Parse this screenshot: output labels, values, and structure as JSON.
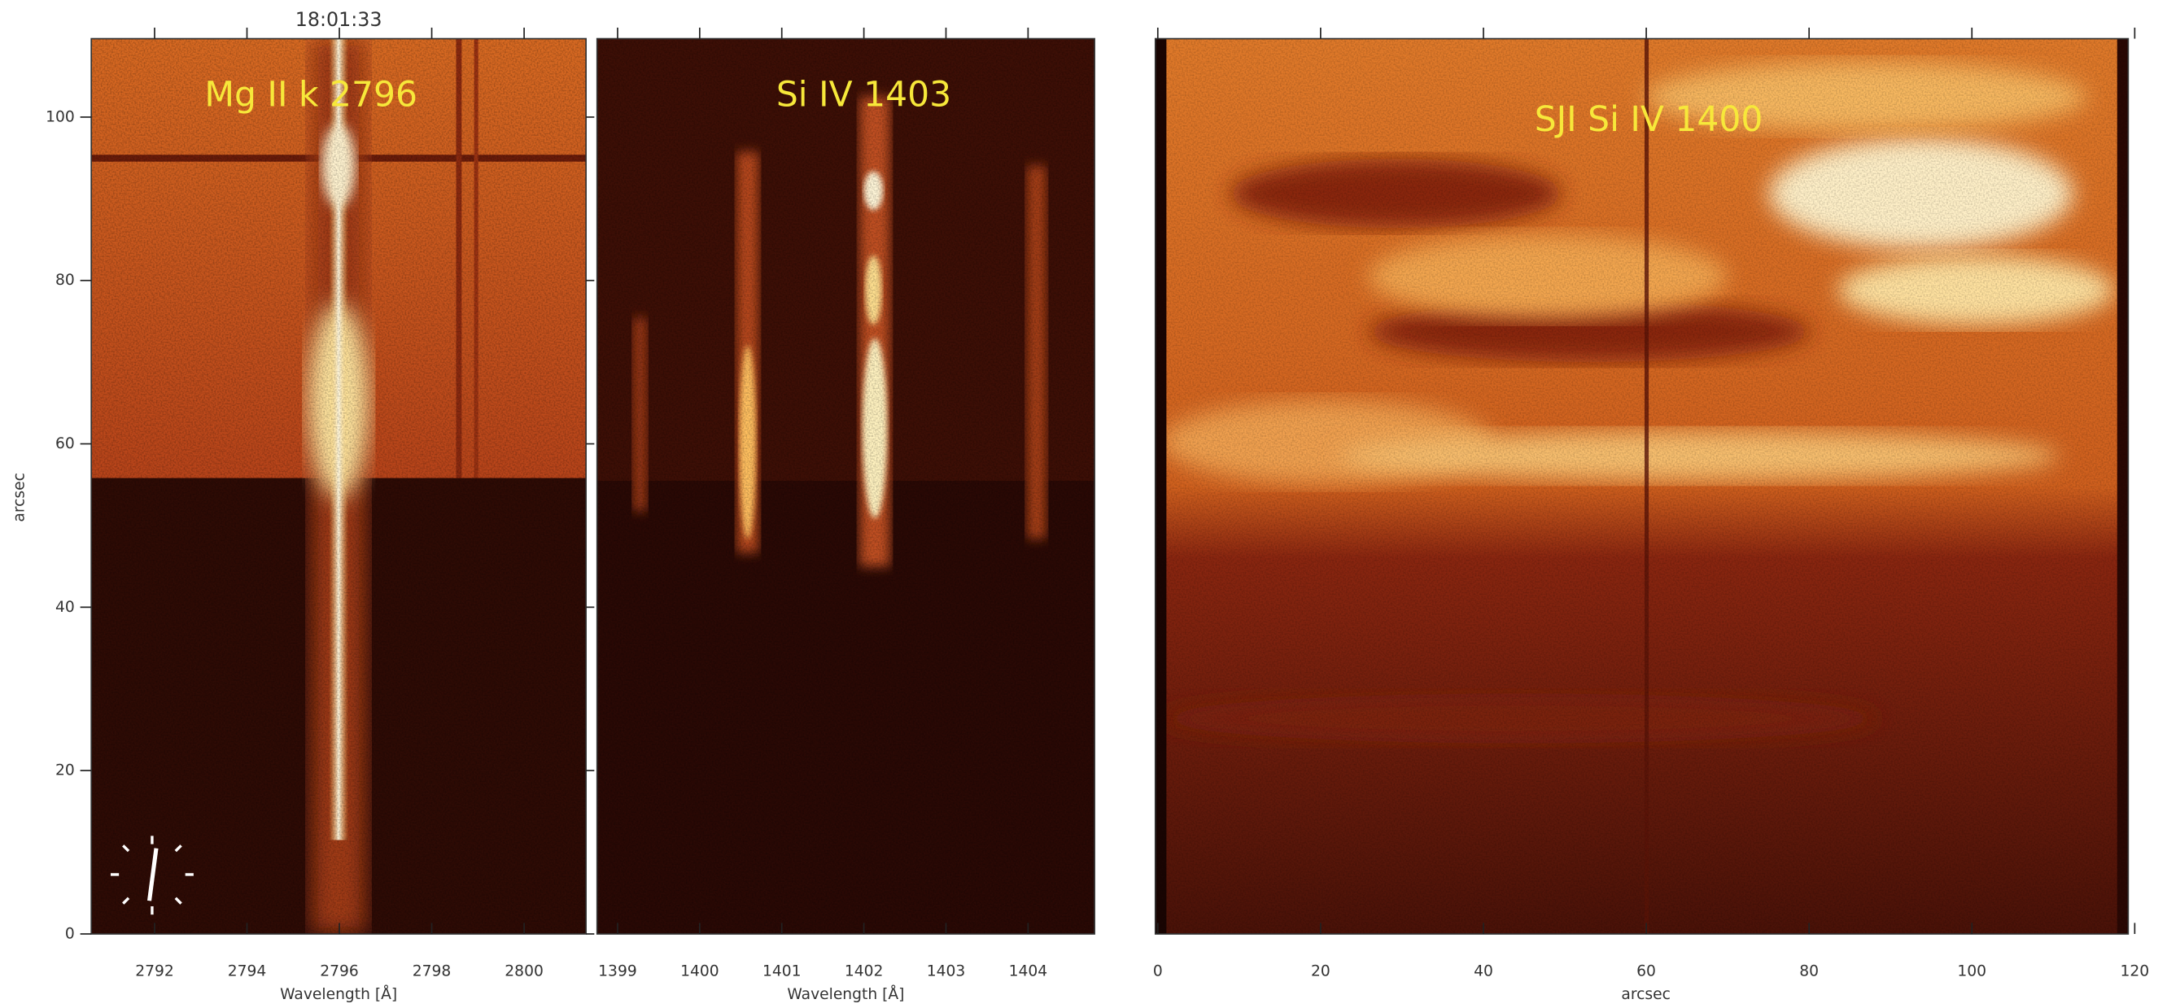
{
  "chart_data": [
    {
      "type": "image",
      "title": "18:01:33",
      "annotation": "Mg II k 2796",
      "xlabel": "Wavelength [Å]",
      "ylabel": "arcsec",
      "xlim": [
        2790.63,
        2801.34
      ],
      "ylim": [
        0,
        109.6
      ],
      "xticks": [
        2792,
        2794,
        2796,
        2798,
        2800
      ],
      "yticks": [
        0,
        20,
        40,
        60,
        80,
        100
      ]
    },
    {
      "type": "image",
      "annotation": "Si IV 1403",
      "xlabel": "Wavelength [Å]",
      "xlim": [
        1398.75,
        1404.81
      ],
      "ylim": [
        0,
        109.6
      ],
      "xticks": [
        1399,
        1400,
        1401,
        1402,
        1403,
        1404
      ]
    },
    {
      "type": "image",
      "annotation": "SJI Si IV 1400",
      "xlabel": "arcsec",
      "xlim": [
        -0.3,
        119.2
      ],
      "xticks": [
        0,
        20,
        40,
        60,
        80,
        100,
        120
      ]
    }
  ]
}
